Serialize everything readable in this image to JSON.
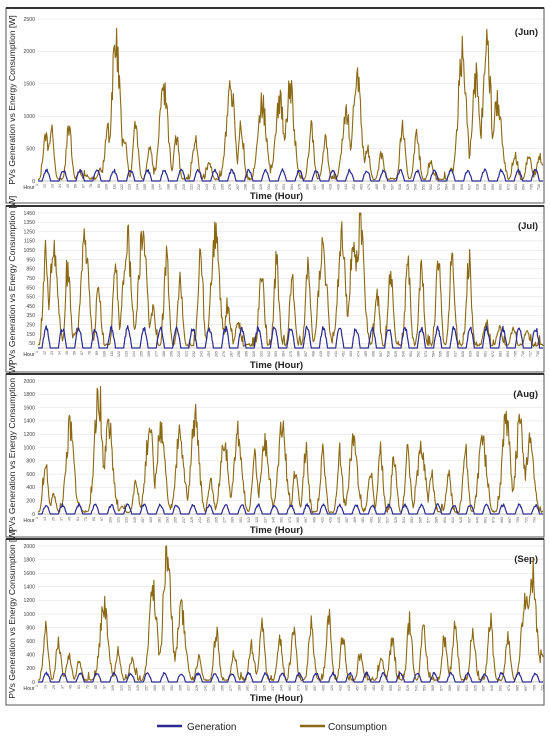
{
  "chart_data": [
    {
      "type": "line",
      "title": "(Jun)",
      "ylabel": "PVs Generation vs Energy Consumption [W]",
      "xlabel": "Time (Hour)",
      "x_first_label": "Hour",
      "ylim": [
        0,
        2500
      ],
      "yticks": [
        0,
        500,
        1000,
        1500,
        2000,
        2500
      ],
      "xticks": [
        1,
        12,
        23,
        34,
        45,
        56,
        67,
        78,
        89,
        100,
        111,
        122,
        133,
        144,
        155,
        166,
        177,
        188,
        199,
        210,
        221,
        232,
        243,
        254,
        265,
        276,
        287,
        298,
        309,
        320,
        331,
        342,
        353,
        364,
        375,
        386,
        397,
        408,
        419,
        430,
        441,
        452,
        463,
        474,
        485,
        496,
        507,
        518,
        529,
        540,
        551,
        562,
        573,
        584,
        595,
        606,
        617,
        628,
        639,
        650,
        661,
        672,
        683,
        694,
        705,
        716
      ],
      "xlim": [
        1,
        720
      ],
      "series": [
        {
          "name": "Generation",
          "color": "#2b2b8f",
          "x": [],
          "values": []
        },
        {
          "name": "Consumption",
          "color": "#8b6914",
          "x": [],
          "values": []
        }
      ]
    },
    {
      "type": "line",
      "title": "(Jul)",
      "ylabel": "PVs Generation vs Energy Consumption [W]",
      "xlabel": "Time (Hour)",
      "x_first_label": "Hour",
      "ylim": [
        0,
        1450
      ],
      "yticks": [
        50,
        150,
        250,
        350,
        450,
        550,
        650,
        750,
        850,
        950,
        1050,
        1150,
        1250,
        1350,
        1450
      ],
      "xticks": [
        1,
        12,
        23,
        34,
        45,
        56,
        67,
        78,
        89,
        100,
        111,
        122,
        133,
        144,
        155,
        166,
        177,
        188,
        199,
        210,
        221,
        232,
        243,
        254,
        265,
        276,
        287,
        298,
        309,
        320,
        331,
        342,
        353,
        364,
        375,
        386,
        397,
        408,
        419,
        430,
        441,
        452,
        463,
        474,
        485,
        496,
        507,
        518,
        529,
        540,
        551,
        562,
        573,
        584,
        595,
        606,
        617,
        628,
        639,
        650,
        661,
        672,
        683,
        694,
        705,
        716,
        727,
        738
      ],
      "xlim": [
        1,
        744
      ],
      "series": [
        {
          "name": "Generation",
          "color": "#2b2b8f",
          "x": [],
          "values": []
        },
        {
          "name": "Consumption",
          "color": "#8b6914",
          "x": [],
          "values": []
        }
      ]
    },
    {
      "type": "line",
      "title": "(Aug)",
      "ylabel": "PVs Generation vs Energy Consumption [W]",
      "xlabel": "Time (Hour)",
      "x_first_label": "Hour",
      "ylim": [
        0,
        2000
      ],
      "yticks": [
        0,
        200,
        400,
        600,
        800,
        1000,
        1200,
        1400,
        1600,
        1800,
        2000
      ],
      "xticks": [
        1,
        13,
        25,
        37,
        49,
        61,
        73,
        85,
        97,
        109,
        121,
        133,
        145,
        157,
        169,
        181,
        193,
        205,
        217,
        229,
        241,
        253,
        265,
        277,
        289,
        301,
        313,
        325,
        337,
        349,
        361,
        373,
        385,
        397,
        409,
        421,
        433,
        445,
        457,
        469,
        481,
        493,
        505,
        517,
        529,
        541,
        553,
        565,
        577,
        589,
        601,
        613,
        625,
        637,
        649,
        661,
        673,
        685,
        697,
        709,
        721,
        733
      ],
      "xlim": [
        1,
        744
      ],
      "series": [
        {
          "name": "Generation",
          "color": "#2b2b8f",
          "x": [],
          "values": []
        },
        {
          "name": "Consumption",
          "color": "#8b6914",
          "x": [],
          "values": []
        }
      ]
    },
    {
      "type": "line",
      "title": "(Sep)",
      "ylabel": "PVs Generation vs Energy Consumption [W]",
      "xlabel": "Time (Hour)",
      "x_first_label": "Hour",
      "ylim": [
        0,
        2000
      ],
      "yticks": [
        0,
        200,
        400,
        600,
        800,
        1000,
        1200,
        1400,
        1600,
        1800,
        2000
      ],
      "xticks": [
        1,
        13,
        25,
        37,
        49,
        61,
        73,
        85,
        97,
        109,
        121,
        133,
        145,
        157,
        169,
        181,
        193,
        205,
        217,
        229,
        241,
        253,
        265,
        277,
        289,
        301,
        313,
        325,
        337,
        349,
        361,
        373,
        385,
        397,
        409,
        421,
        433,
        445,
        457,
        469,
        481,
        493,
        505,
        517,
        529,
        541,
        553,
        565,
        577,
        589,
        601,
        613,
        625,
        637,
        649,
        661,
        673,
        685,
        697,
        709,
        721
      ],
      "xlim": [
        1,
        720
      ],
      "series": [
        {
          "name": "Generation",
          "color": "#2b2b8f",
          "x": [],
          "values": []
        },
        {
          "name": "Consumption",
          "color": "#8b6914",
          "x": [],
          "values": []
        }
      ]
    }
  ],
  "legend": {
    "placement": "bottom",
    "items": [
      {
        "label": "Generation",
        "color": "#2b2b8f"
      },
      {
        "label": "Consumption",
        "color": "#8b6914"
      }
    ]
  },
  "peaks": {
    "Jun": [
      [
        12,
        700
      ],
      [
        20,
        820
      ],
      [
        45,
        860
      ],
      [
        60,
        150
      ],
      [
        70,
        90
      ],
      [
        90,
        180
      ],
      [
        100,
        820
      ],
      [
        112,
        2250
      ],
      [
        124,
        700
      ],
      [
        140,
        850
      ],
      [
        160,
        550
      ],
      [
        180,
        1500
      ],
      [
        198,
        650
      ],
      [
        225,
        700
      ],
      [
        245,
        280
      ],
      [
        275,
        1550
      ],
      [
        290,
        900
      ],
      [
        320,
        1250
      ],
      [
        345,
        1300
      ],
      [
        360,
        1480
      ],
      [
        390,
        850
      ],
      [
        410,
        700
      ],
      [
        440,
        1050
      ],
      [
        455,
        1720
      ],
      [
        470,
        500
      ],
      [
        490,
        420
      ],
      [
        520,
        880
      ],
      [
        540,
        780
      ],
      [
        560,
        300
      ],
      [
        590,
        200
      ],
      [
        605,
        2080
      ],
      [
        625,
        1620
      ],
      [
        640,
        2150
      ],
      [
        655,
        1300
      ],
      [
        680,
        420
      ],
      [
        700,
        420
      ],
      [
        715,
        420
      ]
    ],
    "Jul": [
      [
        12,
        950
      ],
      [
        24,
        1100
      ],
      [
        45,
        880
      ],
      [
        56,
        180
      ],
      [
        70,
        1160
      ],
      [
        90,
        650
      ],
      [
        115,
        870
      ],
      [
        132,
        1230
      ],
      [
        155,
        1300
      ],
      [
        170,
        420
      ],
      [
        190,
        1000
      ],
      [
        210,
        720
      ],
      [
        240,
        1000
      ],
      [
        262,
        1330
      ],
      [
        280,
        450
      ],
      [
        295,
        300
      ],
      [
        330,
        870
      ],
      [
        352,
        960
      ],
      [
        375,
        800
      ],
      [
        398,
        880
      ],
      [
        420,
        1100
      ],
      [
        448,
        1200
      ],
      [
        465,
        1100
      ],
      [
        475,
        1380
      ],
      [
        500,
        580
      ],
      [
        520,
        850
      ],
      [
        545,
        960
      ],
      [
        565,
        880
      ],
      [
        590,
        960
      ],
      [
        610,
        1000
      ],
      [
        635,
        980
      ],
      [
        660,
        280
      ],
      [
        680,
        250
      ],
      [
        700,
        230
      ],
      [
        720,
        200
      ]
    ],
    "Aug": [
      [
        12,
        800
      ],
      [
        24,
        300
      ],
      [
        48,
        1350
      ],
      [
        60,
        200
      ],
      [
        90,
        1850
      ],
      [
        105,
        1450
      ],
      [
        125,
        120
      ],
      [
        145,
        500
      ],
      [
        165,
        1270
      ],
      [
        182,
        1370
      ],
      [
        210,
        1230
      ],
      [
        232,
        1470
      ],
      [
        255,
        500
      ],
      [
        275,
        1100
      ],
      [
        295,
        1270
      ],
      [
        320,
        900
      ],
      [
        335,
        1050
      ],
      [
        360,
        1350
      ],
      [
        380,
        670
      ],
      [
        395,
        960
      ],
      [
        420,
        960
      ],
      [
        445,
        900
      ],
      [
        465,
        1100
      ],
      [
        490,
        660
      ],
      [
        505,
        960
      ],
      [
        525,
        930
      ],
      [
        545,
        1000
      ],
      [
        565,
        1070
      ],
      [
        580,
        600
      ],
      [
        605,
        600
      ],
      [
        630,
        1000
      ],
      [
        655,
        1170
      ],
      [
        690,
        1520
      ],
      [
        710,
        1400
      ],
      [
        725,
        1100
      ]
    ],
    "Sep": [
      [
        12,
        820
      ],
      [
        30,
        600
      ],
      [
        45,
        400
      ],
      [
        60,
        300
      ],
      [
        95,
        1150
      ],
      [
        115,
        400
      ],
      [
        135,
        350
      ],
      [
        165,
        1350
      ],
      [
        185,
        1900
      ],
      [
        205,
        1100
      ],
      [
        230,
        350
      ],
      [
        255,
        750
      ],
      [
        280,
        440
      ],
      [
        305,
        560
      ],
      [
        320,
        850
      ],
      [
        345,
        650
      ],
      [
        365,
        780
      ],
      [
        390,
        890
      ],
      [
        415,
        1000
      ],
      [
        435,
        700
      ],
      [
        460,
        400
      ],
      [
        490,
        340
      ],
      [
        505,
        600
      ],
      [
        530,
        920
      ],
      [
        550,
        840
      ],
      [
        580,
        660
      ],
      [
        595,
        860
      ],
      [
        620,
        790
      ],
      [
        645,
        940
      ],
      [
        670,
        680
      ],
      [
        695,
        1290
      ],
      [
        705,
        1650
      ],
      [
        718,
        400
      ]
    ]
  },
  "gen_peaks": {
    "Jun": 180,
    "Jul": 230,
    "Aug": 150,
    "Sep": 140
  }
}
